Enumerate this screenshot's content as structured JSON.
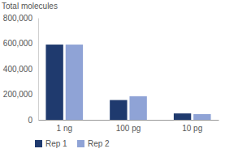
{
  "chart_data": {
    "type": "bar",
    "y_label": "Total molecules",
    "categories": [
      "1 ng",
      "100 pg",
      "10 pg"
    ],
    "series": [
      {
        "name": "Rep 1",
        "color": "#1f3a6e",
        "values": [
          590000,
          155000,
          50000
        ]
      },
      {
        "name": "Rep 2",
        "color": "#8fa3d6",
        "values": [
          590000,
          185000,
          45000
        ]
      }
    ],
    "ylim": [
      0,
      800000
    ],
    "yticks": [
      0,
      {
        "value": 200000,
        "label": "200,000"
      },
      {
        "value": 400000,
        "label": "400,000"
      },
      {
        "value": 600000,
        "label": "600,000"
      },
      {
        "value": 800000,
        "label": "800,000"
      }
    ],
    "grid": false,
    "legend": "bottom-left"
  }
}
